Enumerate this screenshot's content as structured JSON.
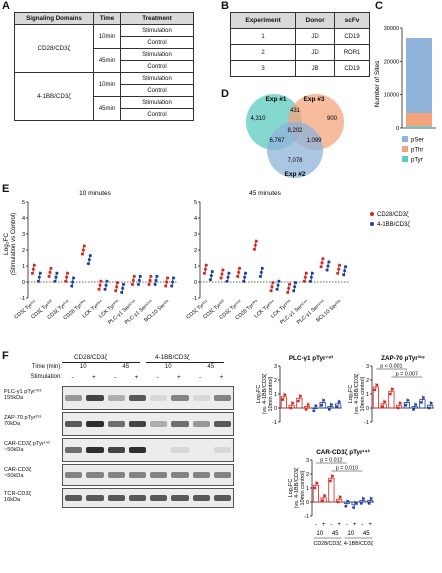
{
  "panels": {
    "A": "A",
    "B": "B",
    "C": "C",
    "D": "D",
    "E": "E",
    "F": "F"
  },
  "tableA": {
    "headers": [
      "Signaling Domains",
      "Time",
      "Treatment"
    ],
    "domains": [
      "CD28/CD3ζ",
      "4-1BB/CD3ζ"
    ],
    "times": [
      "10min",
      "45min",
      "10min",
      "45min"
    ],
    "treatments": [
      "Stimulation",
      "Control",
      "Stimulation",
      "Control",
      "Stimulation",
      "Control",
      "Stimulation",
      "Control"
    ]
  },
  "tableB": {
    "headers": [
      "Experiment",
      "Donor",
      "scFv"
    ],
    "rows": [
      [
        "1",
        "JD",
        "CD19"
      ],
      [
        "2",
        "JD",
        "ROR1"
      ],
      [
        "3",
        "JB",
        "CD19"
      ]
    ]
  },
  "panelC": {
    "ylabel": "Number of Sites",
    "ticks": [
      "30000",
      "20000",
      "10000",
      "0"
    ],
    "legend": [
      {
        "name": "pSer",
        "color": "#8fb3d9"
      },
      {
        "name": "pThr",
        "color": "#f4a47c"
      },
      {
        "name": "pTyr",
        "color": "#5ccbc0"
      }
    ]
  },
  "panelD": {
    "labels": [
      "Exp #1",
      "Exp #3",
      "Exp #2"
    ],
    "regions": [
      "4,310",
      "431",
      "900",
      "8,202",
      "6,767",
      "1,099",
      "7,078"
    ],
    "colors": [
      "#5ccbc0",
      "#f4a47c",
      "#8fb3d9"
    ]
  },
  "panelE": {
    "subtitles": [
      "10 minutes",
      "45 minutes"
    ],
    "ylabel": "Log₂FC",
    "ylabel2": "(Stimulation vs Control)",
    "yticks": [
      "5",
      "4",
      "3",
      "2",
      "1",
      "0",
      "-1"
    ],
    "sites": [
      "CD3ζ Tyr¹¹¹",
      "CD3ζ Tyr¹²³",
      "CD3ζ Tyr¹⁴²",
      "CD28 Tyr²⁰⁹",
      "LCK Tyr³⁹⁴",
      "LCK Tyr⁵⁰⁵",
      "PLC-γ1 Ser¹²⁴⁸",
      "PLC-γ1 Ser¹²⁴⁸",
      "BCL10 Ser¹³⁸"
    ],
    "legend": [
      {
        "name": "CD28/CD3ζ",
        "color": "#d7261e"
      },
      {
        "name": "4-1BB/CD3ζ",
        "color": "#1f3f9c"
      }
    ]
  },
  "panelF": {
    "groups": [
      "CD28/CD3ζ",
      "4-1BB/CD3ζ"
    ],
    "time_label": "Time (min):",
    "stim_label": "Stimulation:",
    "times": [
      "10",
      "45",
      "10",
      "45"
    ],
    "stim": [
      "-",
      "+",
      "-",
      "+",
      "-",
      "+",
      "-",
      "+"
    ],
    "blots": [
      {
        "name": "PLC-γ1 pTyr⁷⁸³",
        "mw": "155kDa"
      },
      {
        "name": "ZAP-70 pTyr³¹⁹",
        "mw": "70kDa"
      },
      {
        "name": "CAR-CD3ζ pTyr¹⁴²",
        "mw": "~50kDa"
      },
      {
        "name": "CAR-CD3ζ",
        "mw": "~50kDa"
      },
      {
        "name": "TCR-CD3ζ",
        "mw": "16kDa"
      }
    ],
    "plot1": {
      "title": "PLC-γ1 pTyr⁷⁸³",
      "yticks": [
        "3",
        "2",
        "1",
        "0",
        "-1"
      ]
    },
    "plot2": {
      "title": "ZAP-70 pTyr³¹⁹",
      "yticks": [
        "3",
        "2",
        "1",
        "0",
        "-1"
      ],
      "pvals": [
        "p < 0.001",
        "p = 0.007"
      ]
    },
    "plot3": {
      "title": "CAR-CD3ζ pTyr¹⁴²",
      "yticks": [
        "3",
        "2",
        "1",
        "0",
        "-1"
      ],
      "pvals": [
        "p = 0.012",
        "p = 0.010"
      ],
      "xrow_stim": [
        "-",
        "+",
        "-",
        "+",
        "-",
        "+",
        "-",
        "+"
      ],
      "xrow_time": [
        "10",
        "45",
        "10",
        "45"
      ],
      "xgroups": [
        "CD28/CD3ζ",
        "4-1BB/CD3ζ"
      ]
    },
    "plot_ylabel": [
      "Log₂FC",
      "(vs. 4-1BB/CD3ζ",
      "10min control)"
    ]
  },
  "chart_data": [
    {
      "type": "bar",
      "title": "",
      "ylabel": "Number of Sites",
      "ylim": [
        0,
        30000
      ],
      "categories": [
        ""
      ],
      "series": [
        {
          "name": "pTyr",
          "values": [
            500
          ]
        },
        {
          "name": "pThr",
          "values": [
            4000
          ]
        },
        {
          "name": "pSer",
          "values": [
            22500
          ]
        }
      ]
    },
    {
      "type": "scatter",
      "title": "10 minutes",
      "ylabel": "Log₂FC (Stimulation vs Control)",
      "ylim": [
        -1,
        5
      ],
      "categories": [
        "CD3ζ Tyr¹¹¹",
        "CD3ζ Tyr¹²³",
        "CD3ζ Tyr¹⁴²",
        "CD28 Tyr²⁰⁹",
        "LCK Tyr³⁹⁴",
        "LCK Tyr⁵⁰⁵",
        "PLC-γ1 Ser¹²⁴⁸",
        "PLC-γ1 Ser¹²⁴⁸",
        "BCL10 Ser¹³⁸"
      ],
      "series": [
        {
          "name": "CD28/CD3ζ",
          "values": [
            0.8,
            0.6,
            0.3,
            2.0,
            -0.2,
            -0.3,
            0.1,
            0.1,
            0.0
          ]
        },
        {
          "name": "4-1BB/CD3ζ",
          "values": [
            0.3,
            0.3,
            0.0,
            1.4,
            -0.2,
            -0.4,
            0.1,
            0.1,
            0.0
          ]
        }
      ]
    },
    {
      "type": "scatter",
      "title": "45 minutes",
      "ylabel": "Log₂FC (Stimulation vs Control)",
      "ylim": [
        -1,
        5
      ],
      "categories": [
        "CD3ζ Tyr¹¹¹",
        "CD3ζ Tyr¹²³",
        "CD3ζ Tyr¹⁴²",
        "CD28 Tyr²⁰⁹",
        "LCK Tyr³⁹⁴",
        "LCK Tyr⁵⁰⁵",
        "PLC-γ1 Ser¹²⁴⁸",
        "PLC-γ1 Ser¹²⁴⁸",
        "BCL10 Ser¹³⁸"
      ],
      "series": [
        {
          "name": "CD28/CD3ζ",
          "values": [
            0.8,
            0.5,
            0.6,
            2.3,
            -0.3,
            -0.4,
            0.3,
            1.2,
            0.8
          ]
        },
        {
          "name": "4-1BB/CD3ζ",
          "values": [
            0.4,
            0.3,
            0.3,
            0.6,
            -0.2,
            -0.3,
            0.3,
            1.0,
            0.7
          ]
        }
      ]
    },
    {
      "type": "bar",
      "title": "PLC-γ1 pTyr⁷⁸³",
      "ylim": [
        -1,
        3
      ],
      "categories": [
        "-/10 CD28",
        "+/10 CD28",
        "-/45 CD28",
        "+/45 CD28",
        "-/10 4-1BB",
        "+/10 4-1BB",
        "-/45 4-1BB",
        "+/45 4-1BB"
      ],
      "values": [
        0.8,
        0.2,
        0.7,
        0.1,
        0.0,
        0.4,
        0.1,
        0.3
      ]
    },
    {
      "type": "bar",
      "title": "ZAP-70 pTyr³¹⁹",
      "ylim": [
        -1,
        3
      ],
      "categories": [
        "-/10 CD28",
        "+/10 CD28",
        "-/45 CD28",
        "+/45 CD28",
        "-/10 4-1BB",
        "+/10 4-1BB",
        "-/45 4-1BB",
        "+/45 4-1BB"
      ],
      "values": [
        1.5,
        0.3,
        1.2,
        0.2,
        0.4,
        0.1,
        0.6,
        0.2
      ]
    },
    {
      "type": "bar",
      "title": "CAR-CD3ζ pTyr¹⁴²",
      "ylim": [
        -1,
        3
      ],
      "categories": [
        "-/10 CD28",
        "+/10 CD28",
        "-/45 CD28",
        "+/45 CD28",
        "-/10 4-1BB",
        "+/10 4-1BB",
        "-/45 4-1BB",
        "+/45 4-1BB"
      ],
      "values": [
        1.2,
        0.3,
        1.7,
        0.2,
        -0.1,
        -0.2,
        0.1,
        0.1
      ]
    }
  ]
}
